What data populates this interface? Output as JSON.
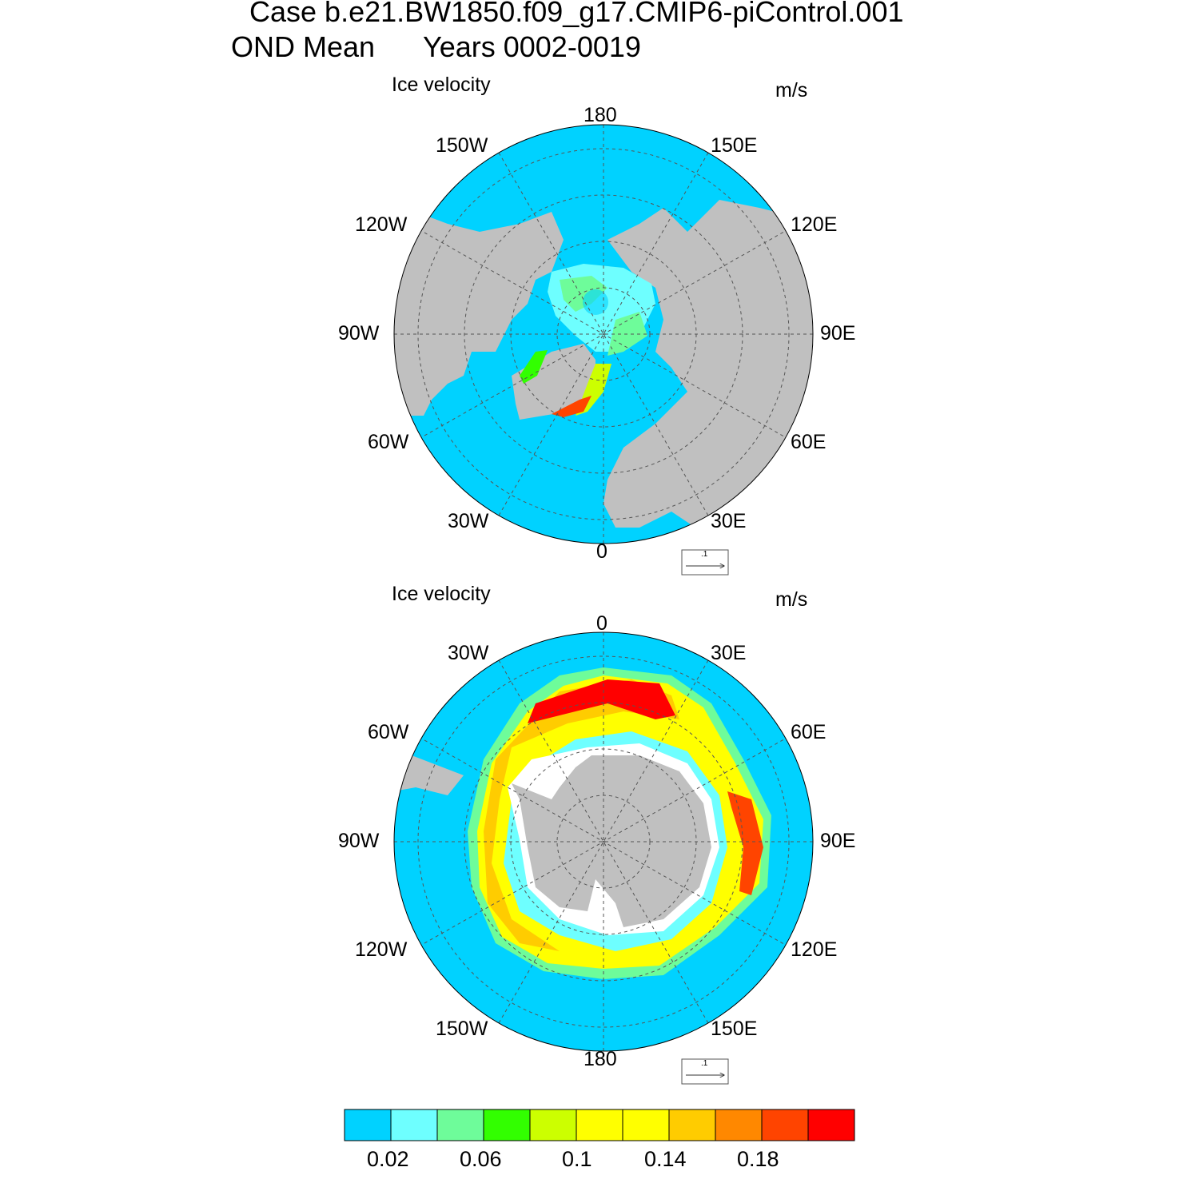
{
  "header": {
    "title_line1": "Case b.e21.BW1850.f09_g17.CMIP6-piControl.001",
    "title_line2_season": "OND Mean",
    "title_line2_years": "Years 0002-0019"
  },
  "chart_data": [
    {
      "type": "heatmap",
      "projection": "north polar stereographic",
      "hemisphere": "NH",
      "left_title": "Ice velocity",
      "units": "m/s",
      "longitude_labels": {
        "top": "180",
        "bottom": "0",
        "left": "90W",
        "right": "90E",
        "upper_left_1": "150W",
        "upper_left_2": "120W",
        "upper_right_1": "150E",
        "upper_right_2": "120E",
        "lower_left_1": "60W",
        "lower_left_2": "30W",
        "lower_right_1": "60E",
        "lower_right_2": "30E"
      },
      "reference_vector": {
        "label": ".1",
        "value": 0.1
      },
      "colors": {
        "ocean": "#00d2ff",
        "land": "#c0c0c0",
        "no_data": "#ffffff"
      }
    },
    {
      "type": "heatmap",
      "projection": "south polar stereographic",
      "hemisphere": "SH",
      "left_title": "Ice velocity",
      "units": "m/s",
      "longitude_labels": {
        "top": "0",
        "bottom": "180",
        "left": "90W",
        "right": "90E",
        "upper_left_1": "30W",
        "upper_left_2": "60W",
        "upper_right_1": "30E",
        "upper_right_2": "60E",
        "lower_left_1": "120W",
        "lower_left_2": "150W",
        "lower_right_1": "120E",
        "lower_right_2": "150E"
      },
      "reference_vector": {
        "label": ".1",
        "value": 0.1
      },
      "colors": {
        "ocean": "#00d2ff",
        "land": "#c0c0c0",
        "no_data": "#ffffff"
      }
    }
  ],
  "colorbar": {
    "levels": [
      0.02,
      0.04,
      0.06,
      0.08,
      0.1,
      0.12,
      0.14,
      0.16,
      0.18,
      0.2
    ],
    "labels": [
      "0.02",
      "0.06",
      "0.1",
      "0.14",
      "0.18"
    ],
    "colors": [
      "#00d2ff",
      "#6effff",
      "#6efc9a",
      "#32ff00",
      "#ccff00",
      "#ffff00",
      "#ffff00",
      "#ffcc00",
      "#ff8800",
      "#ff4400",
      "#ff0000"
    ]
  }
}
